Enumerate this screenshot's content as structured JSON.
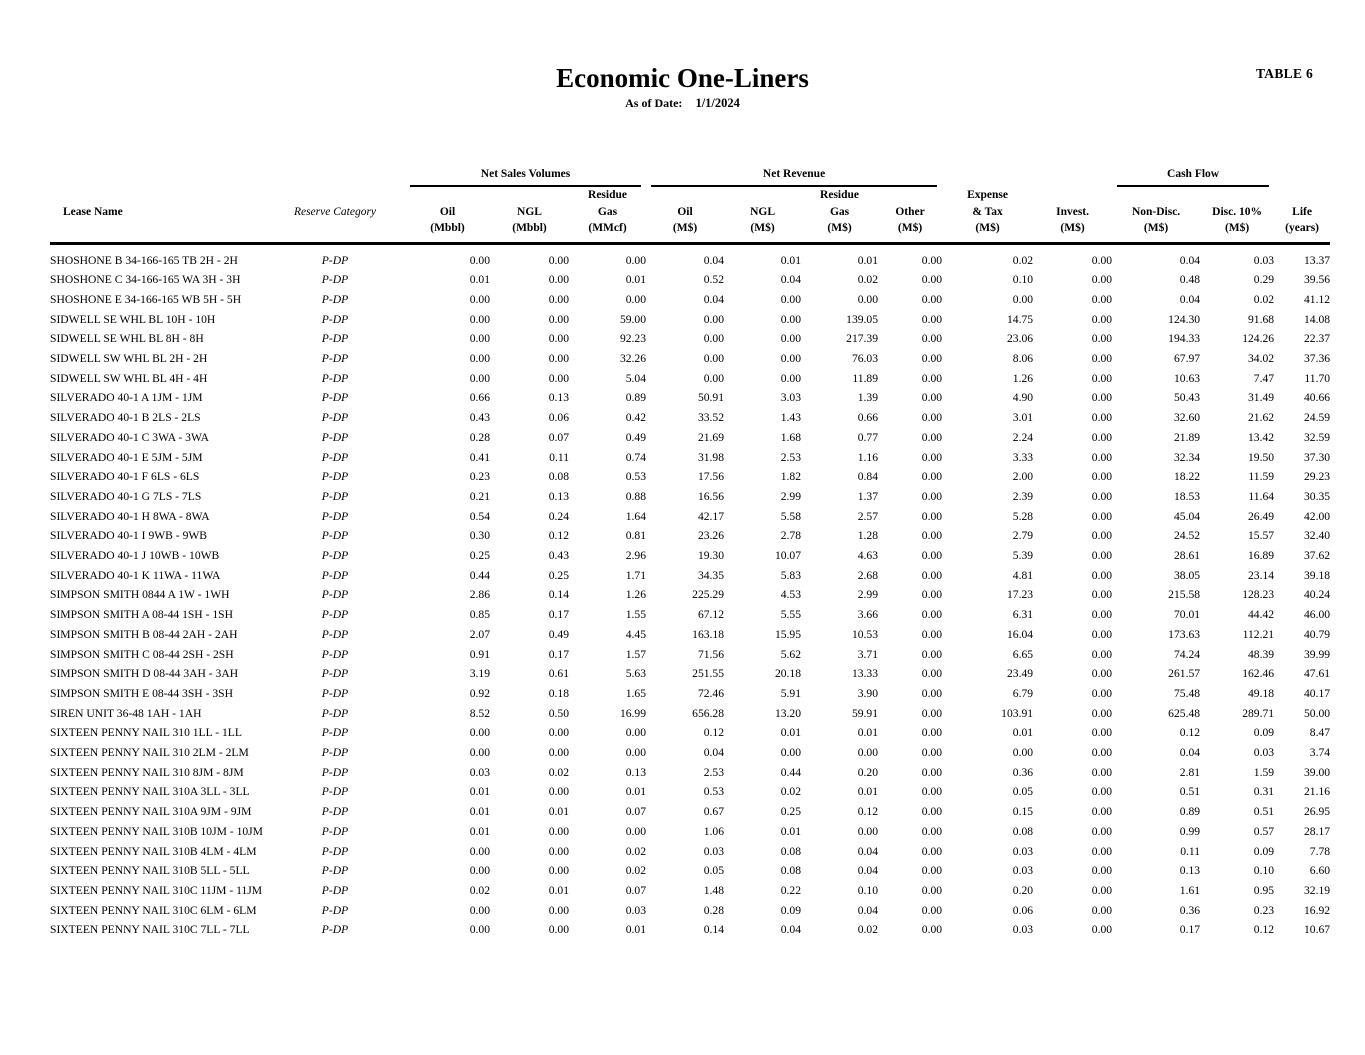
{
  "page": {
    "table_tag": "TABLE 6",
    "title": "Economic One-Liners",
    "as_of_label": "As of Date:",
    "as_of_value": "1/1/2024"
  },
  "table": {
    "groups": {
      "net_sales_volumes": "Net Sales Volumes",
      "net_revenue": "Net Revenue",
      "cash_flow": "Cash Flow"
    },
    "columns": [
      {
        "key": "lease-name",
        "lines": [
          "Lease Name"
        ]
      },
      {
        "key": "reserve-category",
        "lines": [
          "Reserve Category"
        ]
      },
      {
        "key": "oil-mbbl",
        "lines": [
          "Oil",
          "(Mbbl)"
        ]
      },
      {
        "key": "ngl-mbbl",
        "lines": [
          "NGL",
          "(Mbbl)"
        ]
      },
      {
        "key": "residue-gas-mmcf",
        "lines": [
          "Residue",
          "Gas",
          "(MMcf)"
        ]
      },
      {
        "key": "oil-ms",
        "lines": [
          "Oil",
          "(M$)"
        ]
      },
      {
        "key": "ngl-ms",
        "lines": [
          "NGL",
          "(M$)"
        ]
      },
      {
        "key": "residue-gas-ms",
        "lines": [
          "Residue",
          "Gas",
          "(M$)"
        ]
      },
      {
        "key": "other-ms",
        "lines": [
          "Other",
          "(M$)"
        ]
      },
      {
        "key": "expense-tax-ms",
        "lines": [
          "Expense",
          "& Tax",
          "(M$)"
        ]
      },
      {
        "key": "invest-ms",
        "lines": [
          "Invest.",
          "(M$)"
        ]
      },
      {
        "key": "non-disc-ms",
        "lines": [
          "Non-Disc.",
          "(M$)"
        ]
      },
      {
        "key": "disc-10-ms",
        "lines": [
          "Disc. 10%",
          "(M$)"
        ]
      },
      {
        "key": "life-years",
        "lines": [
          "Life",
          "(years)"
        ]
      }
    ],
    "rows": [
      [
        "SHOSHONE B 34-166-165 TB 2H - 2H",
        "P-DP",
        "0.00",
        "0.00",
        "0.00",
        "0.04",
        "0.01",
        "0.01",
        "0.00",
        "0.02",
        "0.00",
        "0.04",
        "0.03",
        "13.37"
      ],
      [
        "SHOSHONE C 34-166-165 WA 3H - 3H",
        "P-DP",
        "0.01",
        "0.00",
        "0.01",
        "0.52",
        "0.04",
        "0.02",
        "0.00",
        "0.10",
        "0.00",
        "0.48",
        "0.29",
        "39.56"
      ],
      [
        "SHOSHONE E 34-166-165 WB 5H - 5H",
        "P-DP",
        "0.00",
        "0.00",
        "0.00",
        "0.04",
        "0.00",
        "0.00",
        "0.00",
        "0.00",
        "0.00",
        "0.04",
        "0.02",
        "41.12"
      ],
      [
        "SIDWELL SE WHL BL 10H - 10H",
        "P-DP",
        "0.00",
        "0.00",
        "59.00",
        "0.00",
        "0.00",
        "139.05",
        "0.00",
        "14.75",
        "0.00",
        "124.30",
        "91.68",
        "14.08"
      ],
      [
        "SIDWELL SE WHL BL 8H - 8H",
        "P-DP",
        "0.00",
        "0.00",
        "92.23",
        "0.00",
        "0.00",
        "217.39",
        "0.00",
        "23.06",
        "0.00",
        "194.33",
        "124.26",
        "22.37"
      ],
      [
        "SIDWELL SW WHL BL 2H - 2H",
        "P-DP",
        "0.00",
        "0.00",
        "32.26",
        "0.00",
        "0.00",
        "76.03",
        "0.00",
        "8.06",
        "0.00",
        "67.97",
        "34.02",
        "37.36"
      ],
      [
        "SIDWELL SW WHL BL 4H - 4H",
        "P-DP",
        "0.00",
        "0.00",
        "5.04",
        "0.00",
        "0.00",
        "11.89",
        "0.00",
        "1.26",
        "0.00",
        "10.63",
        "7.47",
        "11.70"
      ],
      [
        "SILVERADO 40-1 A 1JM - 1JM",
        "P-DP",
        "0.66",
        "0.13",
        "0.89",
        "50.91",
        "3.03",
        "1.39",
        "0.00",
        "4.90",
        "0.00",
        "50.43",
        "31.49",
        "40.66"
      ],
      [
        "SILVERADO 40-1 B 2LS - 2LS",
        "P-DP",
        "0.43",
        "0.06",
        "0.42",
        "33.52",
        "1.43",
        "0.66",
        "0.00",
        "3.01",
        "0.00",
        "32.60",
        "21.62",
        "24.59"
      ],
      [
        "SILVERADO 40-1 C 3WA - 3WA",
        "P-DP",
        "0.28",
        "0.07",
        "0.49",
        "21.69",
        "1.68",
        "0.77",
        "0.00",
        "2.24",
        "0.00",
        "21.89",
        "13.42",
        "32.59"
      ],
      [
        "SILVERADO 40-1 E 5JM - 5JM",
        "P-DP",
        "0.41",
        "0.11",
        "0.74",
        "31.98",
        "2.53",
        "1.16",
        "0.00",
        "3.33",
        "0.00",
        "32.34",
        "19.50",
        "37.30"
      ],
      [
        "SILVERADO 40-1 F 6LS - 6LS",
        "P-DP",
        "0.23",
        "0.08",
        "0.53",
        "17.56",
        "1.82",
        "0.84",
        "0.00",
        "2.00",
        "0.00",
        "18.22",
        "11.59",
        "29.23"
      ],
      [
        "SILVERADO 40-1 G 7LS - 7LS",
        "P-DP",
        "0.21",
        "0.13",
        "0.88",
        "16.56",
        "2.99",
        "1.37",
        "0.00",
        "2.39",
        "0.00",
        "18.53",
        "11.64",
        "30.35"
      ],
      [
        "SILVERADO 40-1 H 8WA - 8WA",
        "P-DP",
        "0.54",
        "0.24",
        "1.64",
        "42.17",
        "5.58",
        "2.57",
        "0.00",
        "5.28",
        "0.00",
        "45.04",
        "26.49",
        "42.00"
      ],
      [
        "SILVERADO 40-1 I 9WB - 9WB",
        "P-DP",
        "0.30",
        "0.12",
        "0.81",
        "23.26",
        "2.78",
        "1.28",
        "0.00",
        "2.79",
        "0.00",
        "24.52",
        "15.57",
        "32.40"
      ],
      [
        "SILVERADO 40-1 J 10WB - 10WB",
        "P-DP",
        "0.25",
        "0.43",
        "2.96",
        "19.30",
        "10.07",
        "4.63",
        "0.00",
        "5.39",
        "0.00",
        "28.61",
        "16.89",
        "37.62"
      ],
      [
        "SILVERADO 40-1 K 11WA - 11WA",
        "P-DP",
        "0.44",
        "0.25",
        "1.71",
        "34.35",
        "5.83",
        "2.68",
        "0.00",
        "4.81",
        "0.00",
        "38.05",
        "23.14",
        "39.18"
      ],
      [
        "SIMPSON SMITH 0844 A 1W - 1WH",
        "P-DP",
        "2.86",
        "0.14",
        "1.26",
        "225.29",
        "4.53",
        "2.99",
        "0.00",
        "17.23",
        "0.00",
        "215.58",
        "128.23",
        "40.24"
      ],
      [
        "SIMPSON SMITH A 08-44 1SH - 1SH",
        "P-DP",
        "0.85",
        "0.17",
        "1.55",
        "67.12",
        "5.55",
        "3.66",
        "0.00",
        "6.31",
        "0.00",
        "70.01",
        "44.42",
        "46.00"
      ],
      [
        "SIMPSON SMITH B 08-44 2AH - 2AH",
        "P-DP",
        "2.07",
        "0.49",
        "4.45",
        "163.18",
        "15.95",
        "10.53",
        "0.00",
        "16.04",
        "0.00",
        "173.63",
        "112.21",
        "40.79"
      ],
      [
        "SIMPSON SMITH C 08-44 2SH - 2SH",
        "P-DP",
        "0.91",
        "0.17",
        "1.57",
        "71.56",
        "5.62",
        "3.71",
        "0.00",
        "6.65",
        "0.00",
        "74.24",
        "48.39",
        "39.99"
      ],
      [
        "SIMPSON SMITH D 08-44 3AH - 3AH",
        "P-DP",
        "3.19",
        "0.61",
        "5.63",
        "251.55",
        "20.18",
        "13.33",
        "0.00",
        "23.49",
        "0.00",
        "261.57",
        "162.46",
        "47.61"
      ],
      [
        "SIMPSON SMITH E 08-44 3SH - 3SH",
        "P-DP",
        "0.92",
        "0.18",
        "1.65",
        "72.46",
        "5.91",
        "3.90",
        "0.00",
        "6.79",
        "0.00",
        "75.48",
        "49.18",
        "40.17"
      ],
      [
        "SIREN UNIT 36-48 1AH - 1AH",
        "P-DP",
        "8.52",
        "0.50",
        "16.99",
        "656.28",
        "13.20",
        "59.91",
        "0.00",
        "103.91",
        "0.00",
        "625.48",
        "289.71",
        "50.00"
      ],
      [
        "SIXTEEN PENNY NAIL 310 1LL - 1LL",
        "P-DP",
        "0.00",
        "0.00",
        "0.00",
        "0.12",
        "0.01",
        "0.01",
        "0.00",
        "0.01",
        "0.00",
        "0.12",
        "0.09",
        "8.47"
      ],
      [
        "SIXTEEN PENNY NAIL 310 2LM - 2LM",
        "P-DP",
        "0.00",
        "0.00",
        "0.00",
        "0.04",
        "0.00",
        "0.00",
        "0.00",
        "0.00",
        "0.00",
        "0.04",
        "0.03",
        "3.74"
      ],
      [
        "SIXTEEN PENNY NAIL 310 8JM - 8JM",
        "P-DP",
        "0.03",
        "0.02",
        "0.13",
        "2.53",
        "0.44",
        "0.20",
        "0.00",
        "0.36",
        "0.00",
        "2.81",
        "1.59",
        "39.00"
      ],
      [
        "SIXTEEN PENNY NAIL 310A 3LL - 3LL",
        "P-DP",
        "0.01",
        "0.00",
        "0.01",
        "0.53",
        "0.02",
        "0.01",
        "0.00",
        "0.05",
        "0.00",
        "0.51",
        "0.31",
        "21.16"
      ],
      [
        "SIXTEEN PENNY NAIL 310A 9JM - 9JM",
        "P-DP",
        "0.01",
        "0.01",
        "0.07",
        "0.67",
        "0.25",
        "0.12",
        "0.00",
        "0.15",
        "0.00",
        "0.89",
        "0.51",
        "26.95"
      ],
      [
        "SIXTEEN PENNY NAIL 310B 10JM - 10JM",
        "P-DP",
        "0.01",
        "0.00",
        "0.00",
        "1.06",
        "0.01",
        "0.00",
        "0.00",
        "0.08",
        "0.00",
        "0.99",
        "0.57",
        "28.17"
      ],
      [
        "SIXTEEN PENNY NAIL 310B 4LM - 4LM",
        "P-DP",
        "0.00",
        "0.00",
        "0.02",
        "0.03",
        "0.08",
        "0.04",
        "0.00",
        "0.03",
        "0.00",
        "0.11",
        "0.09",
        "7.78"
      ],
      [
        "SIXTEEN PENNY NAIL 310B 5LL - 5LL",
        "P-DP",
        "0.00",
        "0.00",
        "0.02",
        "0.05",
        "0.08",
        "0.04",
        "0.00",
        "0.03",
        "0.00",
        "0.13",
        "0.10",
        "6.60"
      ],
      [
        "SIXTEEN PENNY NAIL 310C 11JM - 11JM",
        "P-DP",
        "0.02",
        "0.01",
        "0.07",
        "1.48",
        "0.22",
        "0.10",
        "0.00",
        "0.20",
        "0.00",
        "1.61",
        "0.95",
        "32.19"
      ],
      [
        "SIXTEEN PENNY NAIL 310C 6LM - 6LM",
        "P-DP",
        "0.00",
        "0.00",
        "0.03",
        "0.28",
        "0.09",
        "0.04",
        "0.00",
        "0.06",
        "0.00",
        "0.36",
        "0.23",
        "16.92"
      ],
      [
        "SIXTEEN PENNY NAIL 310C 7LL - 7LL",
        "P-DP",
        "0.00",
        "0.00",
        "0.01",
        "0.14",
        "0.04",
        "0.02",
        "0.00",
        "0.03",
        "0.00",
        "0.17",
        "0.12",
        "10.67"
      ]
    ]
  }
}
